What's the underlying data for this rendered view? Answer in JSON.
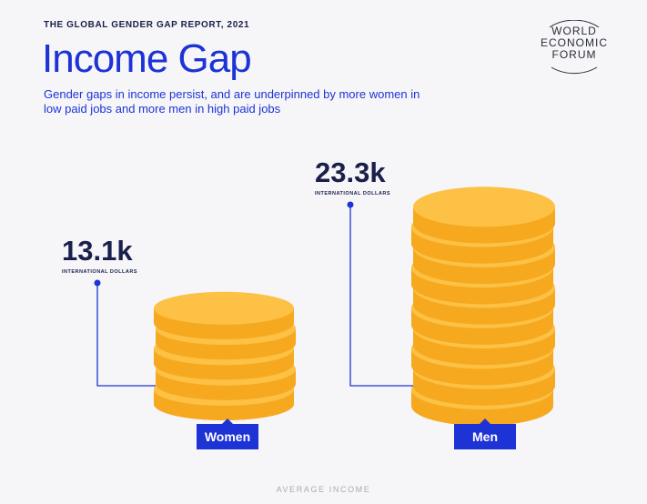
{
  "header": {
    "kicker": "THE GLOBAL GENDER GAP REPORT, 2021",
    "title": "Income Gap",
    "subtitle": "Gender gaps in income persist, and are underpinned by more women in low paid jobs and more men in high paid jobs"
  },
  "logo": {
    "line1": "WORLD",
    "line2": "ECONOMIC",
    "line3": "FORUM"
  },
  "colors": {
    "accent": "#1d33d6",
    "navy": "#1a1f4b",
    "coin_face": "#fcc145",
    "coin_edge": "#f6a91e",
    "background": "#f6f6f8"
  },
  "chart_data": {
    "type": "bar",
    "title": "Income Gap",
    "xlabel": "AVERAGE INCOME",
    "ylabel": "",
    "categories": [
      "Women",
      "Men"
    ],
    "values": [
      13.1,
      23.3
    ],
    "value_labels": [
      "13.1k",
      "23.3k"
    ],
    "unit": "INTERNATIONAL DOLLARS",
    "coin_counts": [
      5,
      10
    ],
    "grid": false,
    "legend": "none"
  }
}
